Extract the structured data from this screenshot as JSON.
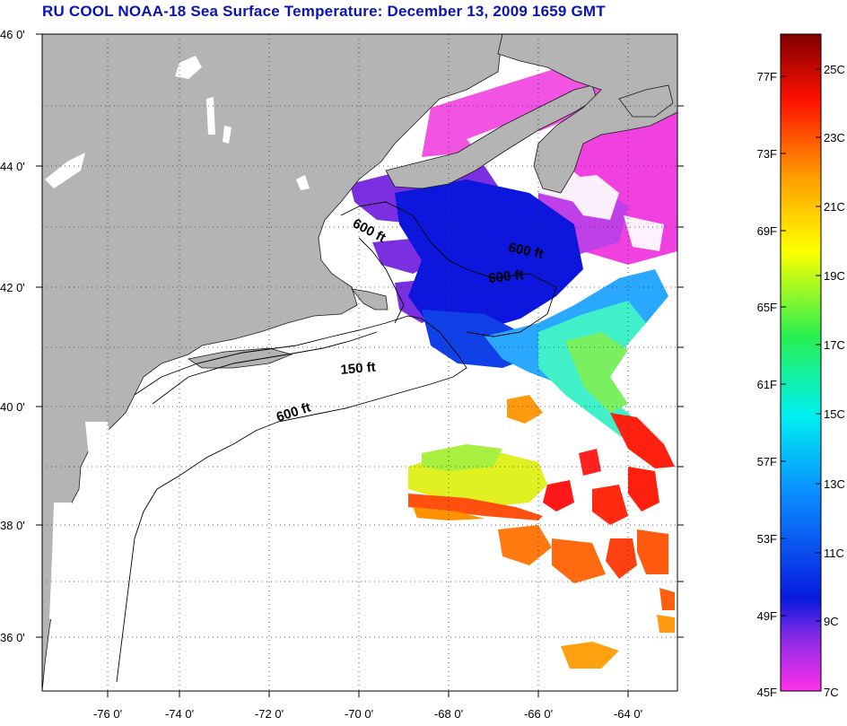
{
  "title": "RU COOL  NOAA-18  Sea Surface Temperature:  December 13, 2009 1659 GMT",
  "map": {
    "lon_range": [
      -77,
      -63
    ],
    "lat_range": [
      35,
      46
    ],
    "lat_ticks": [
      "46 0'",
      "44 0'",
      "42 0'",
      "40 0'",
      "38 0'",
      "36 0'"
    ],
    "lon_ticks": [
      "-76 0'",
      "-74 0'",
      "-72 0'",
      "-70 0'",
      "-68 0'",
      "-66 0'",
      "-64 0'"
    ],
    "land_color": "#b4b4b4",
    "ocean_color": "#ffffff",
    "grid": "dotted",
    "contour_labels": [
      {
        "text": "600 ft"
      },
      {
        "text": "600 ft"
      },
      {
        "text": "600 ft"
      },
      {
        "text": "150 ft"
      },
      {
        "text": "600 ft"
      }
    ]
  },
  "colorbar": {
    "fahrenheit_labels": [
      "77F",
      "73F",
      "69F",
      "65F",
      "61F",
      "57F",
      "53F",
      "49F",
      "45F"
    ],
    "celsius_labels": [
      "25C",
      "23C",
      "21C",
      "19C",
      "17C",
      "15C",
      "13C",
      "11C",
      "9C",
      "7C"
    ],
    "colors": [
      "#ff30e8",
      "#8a2be6",
      "#0a1adf",
      "#0a8cff",
      "#00f0f0",
      "#28f050",
      "#ffff00",
      "#ffa000",
      "#ff1000",
      "#800000"
    ]
  }
}
